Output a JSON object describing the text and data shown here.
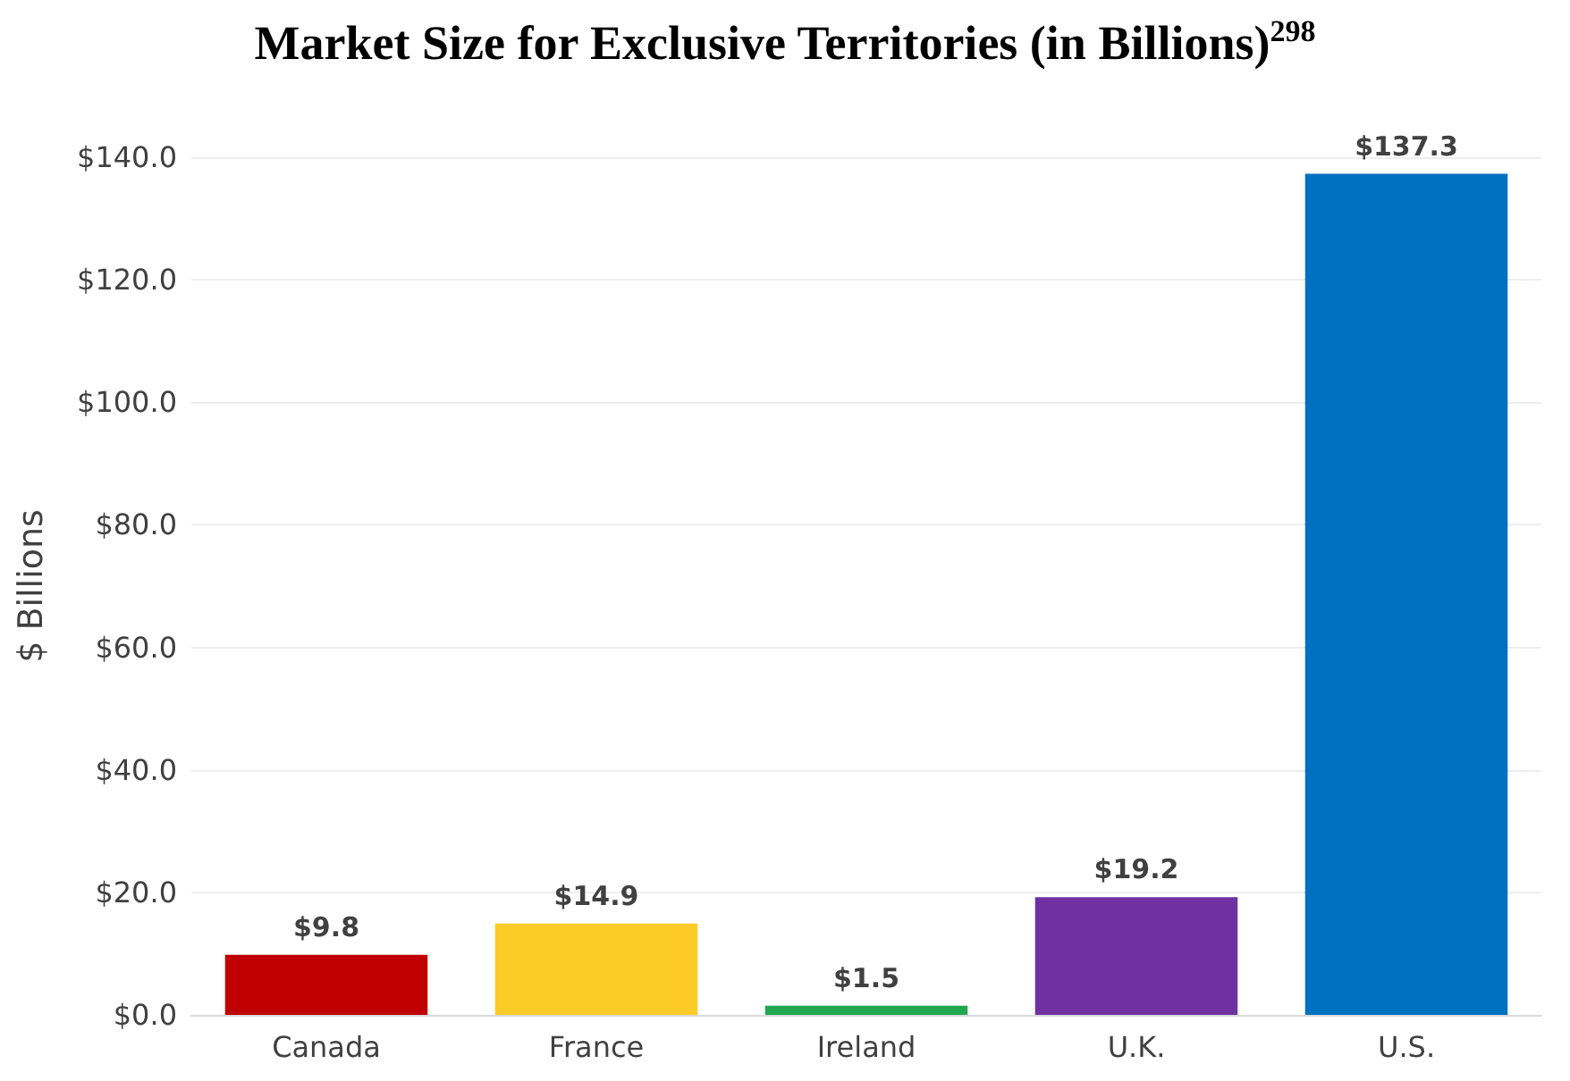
{
  "chart_data": {
    "type": "bar",
    "title": "Market Size for Exclusive Territories (in Billions)$^{298}$",
    "ylabel": "$ Billions",
    "categories": [
      "Canada",
      "France",
      "Ireland",
      "U.K.",
      "U.S."
    ],
    "values": [
      9.8,
      14.9,
      1.5,
      19.2,
      137.3
    ],
    "colors": [
      "#c00000",
      "#fccb26",
      "#1fa84f",
      "#7030a0",
      "#0070c0"
    ],
    "value_labels": [
      "$9.8",
      "$14.9",
      "$1.5",
      "$19.2",
      "$137.3"
    ],
    "ylim": [
      0,
      140
    ],
    "yticks": [
      {
        "value": 0,
        "label": "$0.0"
      },
      {
        "value": 20,
        "label": "$20.0"
      },
      {
        "value": 40,
        "label": "$40.0"
      },
      {
        "value": 60,
        "label": "$60.0"
      },
      {
        "value": 80,
        "label": "$80.0"
      },
      {
        "value": 100,
        "label": "$100.0"
      },
      {
        "value": 120,
        "label": "$120.0"
      },
      {
        "value": 140,
        "label": "$140.0"
      }
    ],
    "grid": "y"
  }
}
